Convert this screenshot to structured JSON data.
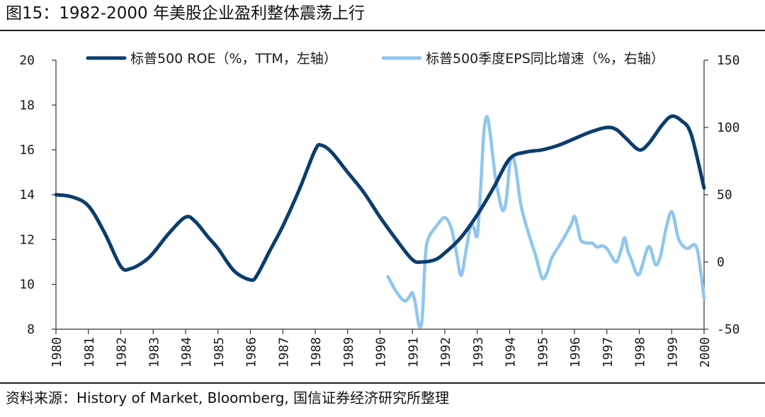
{
  "header": {
    "title": "图15：1982-2000 年美股企业盈利整体震荡上行"
  },
  "footer": {
    "source": "资料来源：History of Market, Bloomberg, 国信证券经济研究所整理"
  },
  "chart_data": {
    "type": "line",
    "title": "",
    "xlabel": "",
    "ylabel_left": "",
    "ylabel_right": "",
    "x_range": [
      1980,
      2000
    ],
    "x_ticks": [
      "1980",
      "1981",
      "1982",
      "1983",
      "1984",
      "1985",
      "1986",
      "1987",
      "1988",
      "1989",
      "1990",
      "1991",
      "1992",
      "1993",
      "1994",
      "1995",
      "1996",
      "1997",
      "1998",
      "1999",
      "2000"
    ],
    "y_left": {
      "min": 8,
      "max": 20,
      "ticks": [
        "8",
        "10",
        "12",
        "14",
        "16",
        "18",
        "20"
      ]
    },
    "y_right": {
      "min": -50,
      "max": 150,
      "ticks": [
        "-50",
        "0",
        "50",
        "100",
        "150"
      ]
    },
    "grid": false,
    "legend_position": "top",
    "series": [
      {
        "name": "标普500 ROE（%，TTM，左轴）",
        "axis": "left",
        "color": "#0b3d6e",
        "points": [
          [
            1980.0,
            14.0
          ],
          [
            1980.5,
            13.9
          ],
          [
            1981.0,
            13.5
          ],
          [
            1981.5,
            12.3
          ],
          [
            1982.0,
            10.8
          ],
          [
            1982.3,
            10.7
          ],
          [
            1982.7,
            11.0
          ],
          [
            1983.0,
            11.4
          ],
          [
            1983.5,
            12.3
          ],
          [
            1984.0,
            13.0
          ],
          [
            1984.3,
            12.8
          ],
          [
            1984.7,
            12.1
          ],
          [
            1985.0,
            11.6
          ],
          [
            1985.5,
            10.6
          ],
          [
            1986.0,
            10.2
          ],
          [
            1986.2,
            10.4
          ],
          [
            1986.6,
            11.5
          ],
          [
            1987.0,
            12.6
          ],
          [
            1987.5,
            14.2
          ],
          [
            1988.0,
            16.0
          ],
          [
            1988.2,
            16.2
          ],
          [
            1988.5,
            15.9
          ],
          [
            1989.0,
            15.0
          ],
          [
            1989.5,
            14.1
          ],
          [
            1990.0,
            13.0
          ],
          [
            1990.5,
            12.0
          ],
          [
            1991.0,
            11.1
          ],
          [
            1991.3,
            11.0
          ],
          [
            1991.7,
            11.1
          ],
          [
            1992.0,
            11.4
          ],
          [
            1992.5,
            12.1
          ],
          [
            1993.0,
            13.1
          ],
          [
            1993.5,
            14.3
          ],
          [
            1994.0,
            15.6
          ],
          [
            1994.5,
            15.9
          ],
          [
            1995.0,
            16.0
          ],
          [
            1995.5,
            16.2
          ],
          [
            1996.0,
            16.5
          ],
          [
            1996.5,
            16.8
          ],
          [
            1997.0,
            17.0
          ],
          [
            1997.3,
            16.9
          ],
          [
            1997.6,
            16.5
          ],
          [
            1998.0,
            16.0
          ],
          [
            1998.3,
            16.3
          ],
          [
            1998.7,
            17.1
          ],
          [
            1999.0,
            17.5
          ],
          [
            1999.3,
            17.3
          ],
          [
            1999.6,
            16.7
          ],
          [
            2000.0,
            14.3
          ]
        ]
      },
      {
        "name": "标普500季度EPS同比增速（%，右轴）",
        "axis": "right",
        "color": "#8fc6ef",
        "points": [
          [
            1990.25,
            -11
          ],
          [
            1990.5,
            -22
          ],
          [
            1990.75,
            -29
          ],
          [
            1990.9,
            -26
          ],
          [
            1991.0,
            -23
          ],
          [
            1991.1,
            -32
          ],
          [
            1991.2,
            -47
          ],
          [
            1991.3,
            -42
          ],
          [
            1991.4,
            5
          ],
          [
            1991.5,
            18
          ],
          [
            1991.75,
            27
          ],
          [
            1992.0,
            33
          ],
          [
            1992.2,
            25
          ],
          [
            1992.35,
            8
          ],
          [
            1992.5,
            -10
          ],
          [
            1992.65,
            8
          ],
          [
            1992.8,
            27
          ],
          [
            1992.9,
            25
          ],
          [
            1993.0,
            20
          ],
          [
            1993.1,
            52
          ],
          [
            1993.2,
            95
          ],
          [
            1993.3,
            108
          ],
          [
            1993.4,
            95
          ],
          [
            1993.55,
            65
          ],
          [
            1993.7,
            45
          ],
          [
            1993.8,
            38
          ],
          [
            1993.9,
            47
          ],
          [
            1994.0,
            72
          ],
          [
            1994.1,
            78
          ],
          [
            1994.2,
            68
          ],
          [
            1994.35,
            42
          ],
          [
            1994.6,
            20
          ],
          [
            1994.8,
            5
          ],
          [
            1995.0,
            -12
          ],
          [
            1995.15,
            -8
          ],
          [
            1995.3,
            3
          ],
          [
            1995.5,
            11
          ],
          [
            1995.7,
            19
          ],
          [
            1995.9,
            28
          ],
          [
            1996.0,
            34
          ],
          [
            1996.1,
            26
          ],
          [
            1996.2,
            16
          ],
          [
            1996.4,
            14
          ],
          [
            1996.55,
            14
          ],
          [
            1996.7,
            11
          ],
          [
            1996.85,
            12
          ],
          [
            1997.0,
            10
          ],
          [
            1997.15,
            4
          ],
          [
            1997.3,
            0
          ],
          [
            1997.45,
            10
          ],
          [
            1997.55,
            18
          ],
          [
            1997.65,
            8
          ],
          [
            1997.75,
            2
          ],
          [
            1997.9,
            -8
          ],
          [
            1998.0,
            -9
          ],
          [
            1998.1,
            -2
          ],
          [
            1998.25,
            10
          ],
          [
            1998.35,
            10
          ],
          [
            1998.5,
            -2
          ],
          [
            1998.65,
            4
          ],
          [
            1998.8,
            22
          ],
          [
            1998.95,
            36
          ],
          [
            1999.05,
            35
          ],
          [
            1999.2,
            18
          ],
          [
            1999.35,
            12
          ],
          [
            1999.5,
            10
          ],
          [
            1999.7,
            13
          ],
          [
            1999.8,
            8
          ],
          [
            1999.9,
            -8
          ],
          [
            2000.0,
            -27
          ]
        ]
      }
    ]
  }
}
